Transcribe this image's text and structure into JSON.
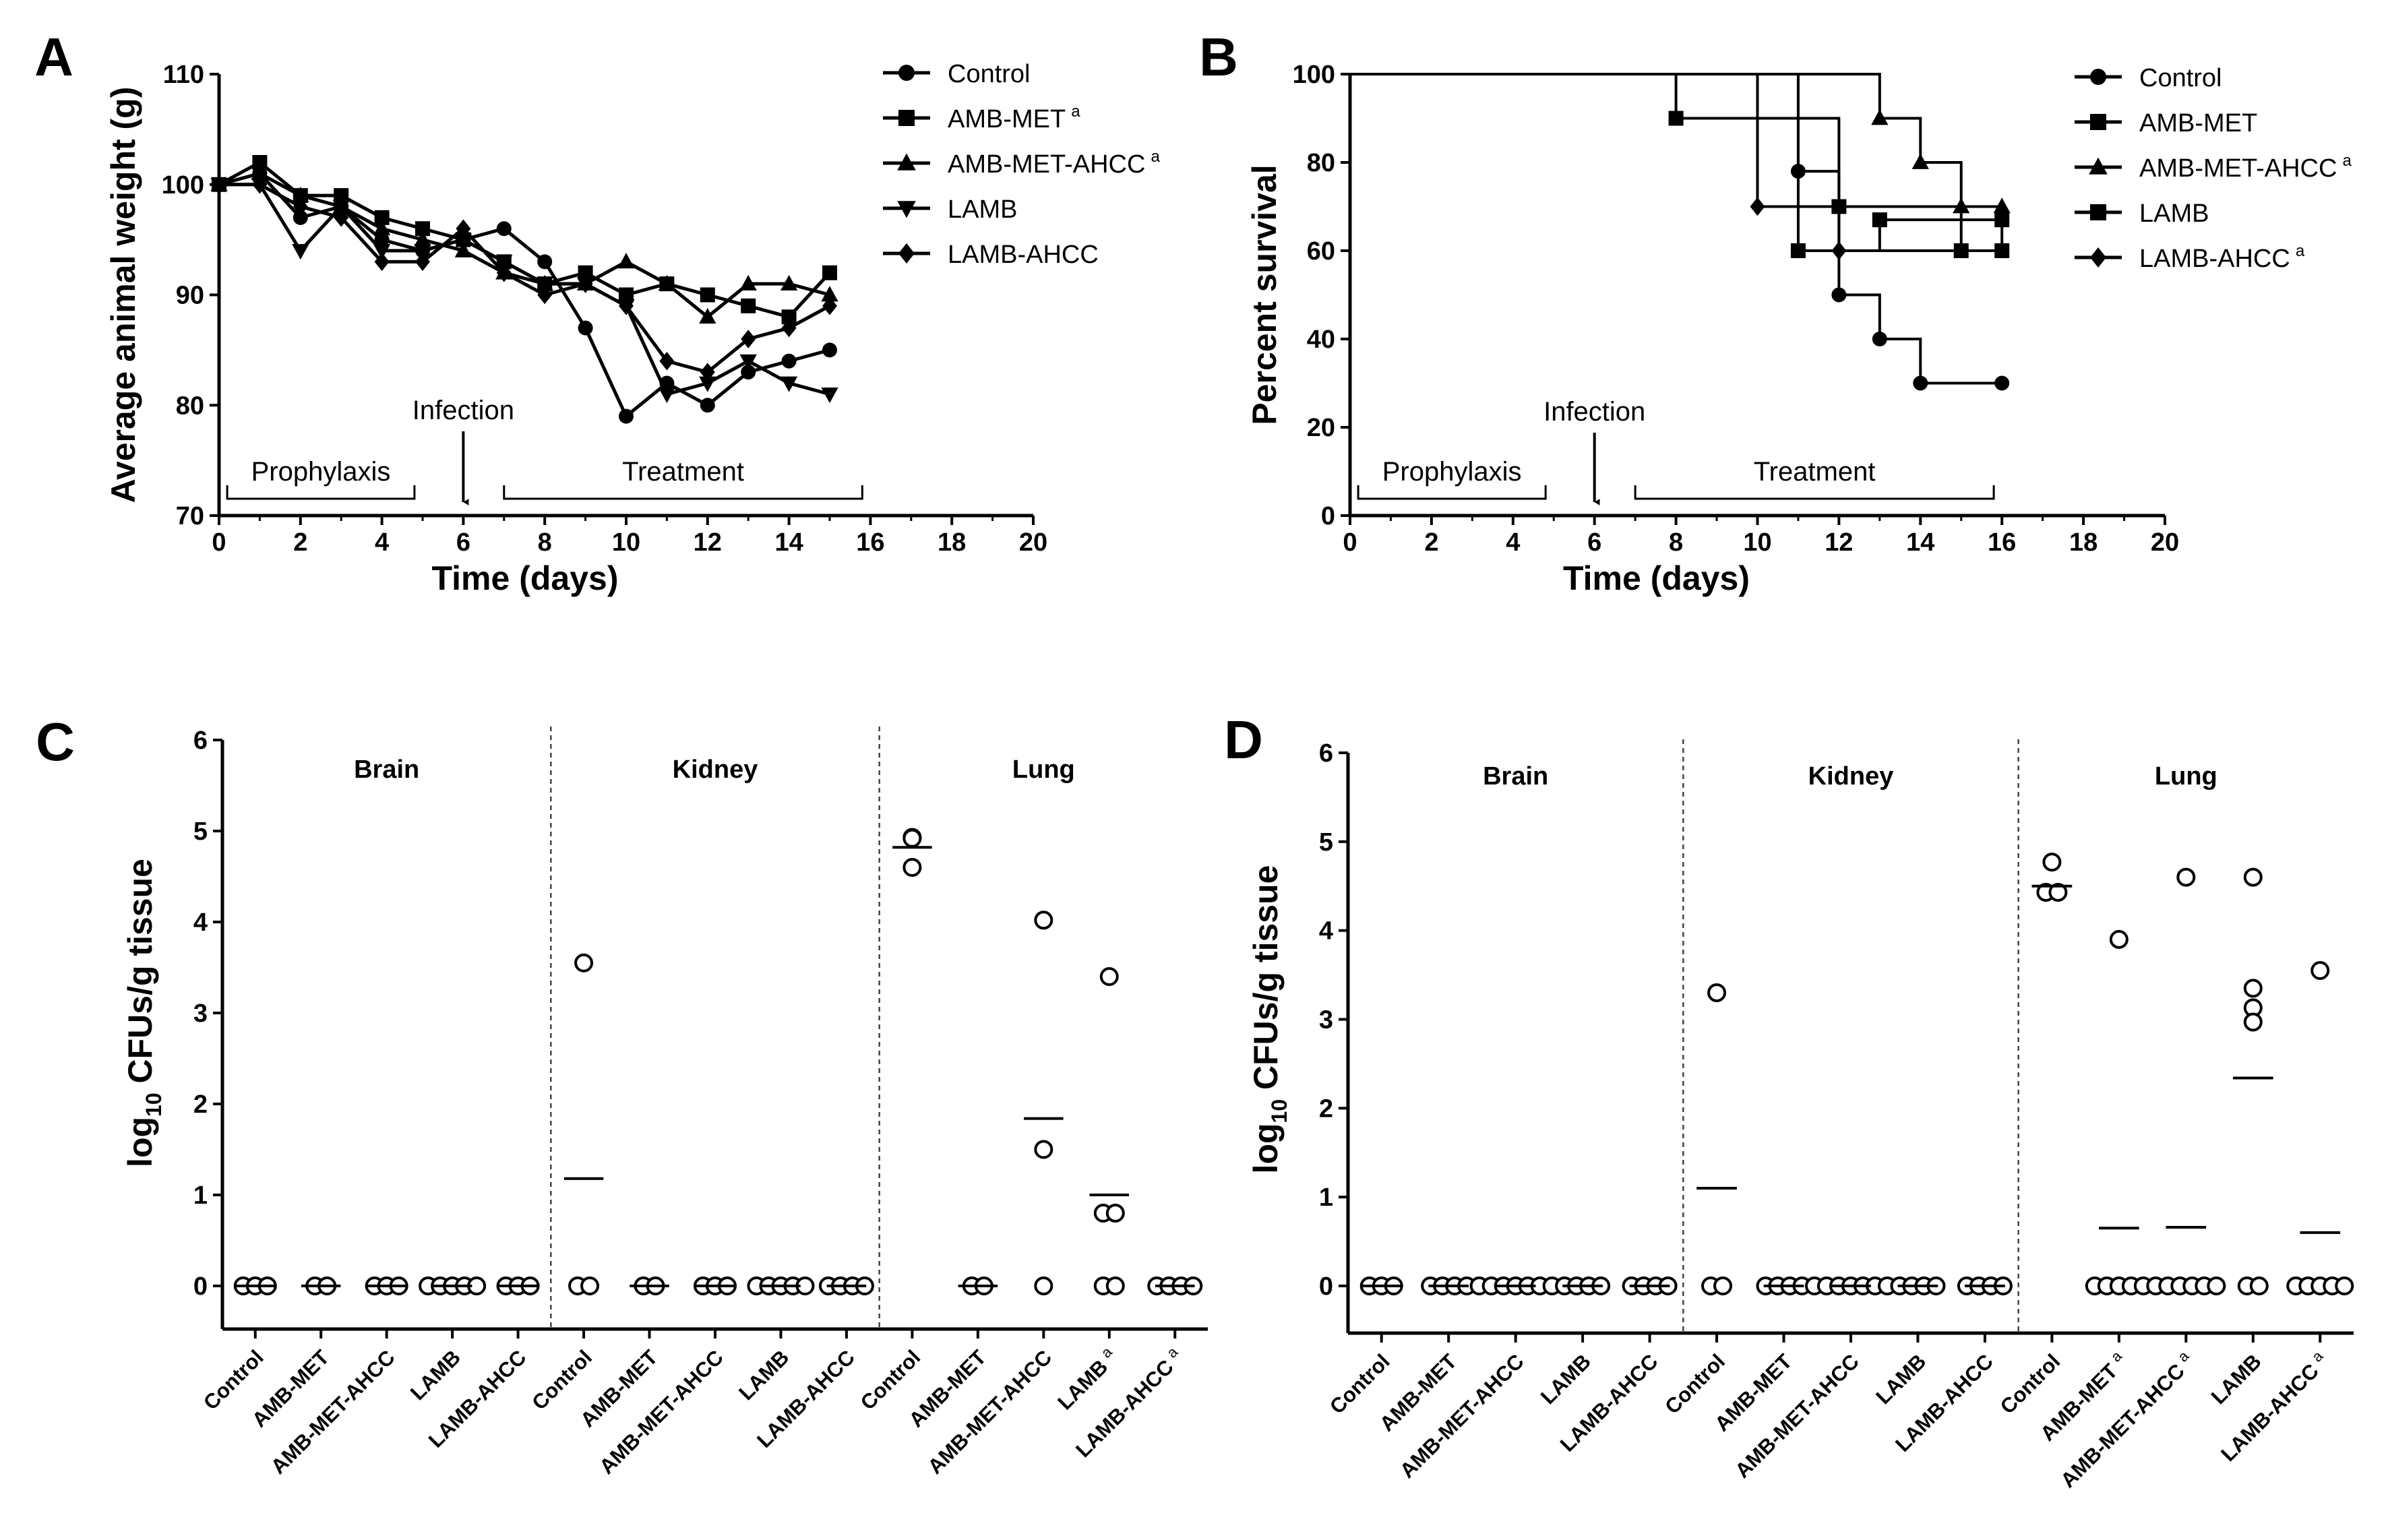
{
  "chart_data": [
    {
      "type": "line",
      "panel": "A",
      "title": "",
      "xlabel": "Time (days)",
      "ylabel": "Average animal weight (g)",
      "xlim": [
        0,
        20
      ],
      "ylim": [
        70,
        110
      ],
      "xticks": [
        "0",
        "2",
        "4",
        "6",
        "8",
        "10",
        "12",
        "14",
        "16",
        "18",
        "20"
      ],
      "yticks": [
        "70",
        "80",
        "90",
        "100",
        "110"
      ],
      "annotations": {
        "infection": "Infection",
        "prophylaxis": "Prophylaxis",
        "treatment": "Treatment"
      },
      "series": [
        {
          "name": "Control",
          "superscript": "",
          "marker": "circle",
          "x": [
            0,
            1,
            2,
            3,
            4,
            5,
            6,
            7,
            8,
            9,
            10,
            11,
            12,
            13,
            14,
            15
          ],
          "y": [
            100,
            101,
            97,
            98,
            95,
            94,
            95,
            96,
            93,
            87,
            79,
            82,
            80,
            83,
            84,
            85
          ]
        },
        {
          "name": "AMB-MET",
          "superscript": "a",
          "marker": "square",
          "x": [
            0,
            1,
            2,
            3,
            4,
            5,
            6,
            7,
            8,
            9,
            10,
            11,
            12,
            13,
            14,
            15
          ],
          "y": [
            100,
            102,
            99,
            99,
            97,
            96,
            95,
            93,
            91,
            92,
            90,
            91,
            90,
            89,
            88,
            92
          ]
        },
        {
          "name": "AMB-MET-AHCC",
          "superscript": "a",
          "marker": "triangle-up",
          "x": [
            0,
            1,
            2,
            3,
            4,
            5,
            6,
            7,
            8,
            9,
            10,
            11,
            12,
            13,
            14,
            15
          ],
          "y": [
            100,
            101,
            99,
            98,
            96,
            95,
            94,
            92,
            91,
            91,
            93,
            91,
            88,
            91,
            91,
            90
          ]
        },
        {
          "name": "LAMB",
          "superscript": "",
          "marker": "triangle-down",
          "x": [
            0,
            1,
            2,
            3,
            4,
            5,
            6,
            7,
            8,
            9,
            10,
            11,
            12,
            13,
            14,
            15
          ],
          "y": [
            100,
            100,
            94,
            98,
            94,
            94,
            95,
            93,
            91,
            91,
            89,
            81,
            82,
            84,
            82,
            81
          ]
        },
        {
          "name": "LAMB-AHCC",
          "superscript": "",
          "marker": "diamond",
          "x": [
            0,
            1,
            2,
            3,
            4,
            5,
            6,
            7,
            8,
            9,
            10,
            11,
            12,
            13,
            14,
            15
          ],
          "y": [
            100,
            100,
            98,
            97,
            93,
            93,
            96,
            92,
            90,
            91,
            89,
            84,
            83,
            86,
            87,
            89
          ]
        }
      ]
    },
    {
      "type": "line",
      "subtype": "survival-step",
      "panel": "B",
      "title": "",
      "xlabel": "Time (days)",
      "ylabel": "Percent survival",
      "xlim": [
        0,
        20
      ],
      "ylim": [
        0,
        100
      ],
      "xticks": [
        "0",
        "2",
        "4",
        "6",
        "8",
        "10",
        "12",
        "14",
        "16",
        "18",
        "20"
      ],
      "yticks": [
        "0",
        "20",
        "40",
        "60",
        "80",
        "100"
      ],
      "annotations": {
        "infection": "Infection",
        "prophylaxis": "Prophylaxis",
        "treatment": "Treatment"
      },
      "series": [
        {
          "name": "Control",
          "superscript": "",
          "marker": "circle",
          "x": [
            0,
            11,
            12,
            13,
            14,
            16
          ],
          "y": [
            100,
            78,
            50,
            40,
            30,
            30
          ]
        },
        {
          "name": "AMB-MET",
          "superscript": "",
          "marker": "square",
          "x": [
            0,
            8,
            12,
            15,
            16
          ],
          "y": [
            100,
            90,
            70,
            60,
            60
          ]
        },
        {
          "name": "AMB-MET-AHCC",
          "superscript": "a",
          "marker": "triangle-up",
          "x": [
            0,
            13,
            14,
            15,
            16
          ],
          "y": [
            100,
            90,
            80,
            70,
            70
          ]
        },
        {
          "name": "LAMB",
          "superscript": "",
          "marker": "square",
          "x": [
            0,
            11,
            13,
            16
          ],
          "y": [
            100,
            60,
            67,
            67
          ]
        },
        {
          "name": "LAMB-AHCC",
          "superscript": "a",
          "marker": "diamond",
          "x": [
            0,
            10,
            12,
            16
          ],
          "y": [
            100,
            70,
            60,
            67
          ]
        }
      ]
    },
    {
      "type": "scatter",
      "panel": "C",
      "title": "",
      "xlabel": "",
      "ylabel": "log10 CFUs/g tissue",
      "ylabel_parts": [
        "log",
        "10",
        " CFUs/g tissue"
      ],
      "ylim": [
        0,
        6
      ],
      "yticks": [
        "0",
        "1",
        "2",
        "3",
        "4",
        "5",
        "6"
      ],
      "tissues": [
        "Brain",
        "Kidney",
        "Lung"
      ],
      "groups": [
        {
          "tissue": "Brain",
          "label": "Control",
          "superscript": "",
          "points": [
            0,
            0,
            0
          ],
          "mean": 0
        },
        {
          "tissue": "Brain",
          "label": "AMB-MET",
          "superscript": "",
          "points": [
            0,
            0
          ],
          "mean": 0
        },
        {
          "tissue": "Brain",
          "label": "AMB-MET-AHCC",
          "superscript": "",
          "points": [
            0,
            0,
            0
          ],
          "mean": 0
        },
        {
          "tissue": "Brain",
          "label": "LAMB",
          "superscript": "",
          "points": [
            0,
            0,
            0,
            0,
            0
          ],
          "mean": 0
        },
        {
          "tissue": "Brain",
          "label": "LAMB-AHCC",
          "superscript": "",
          "points": [
            0,
            0,
            0
          ],
          "mean": 0
        },
        {
          "tissue": "Kidney",
          "label": "Control",
          "superscript": "",
          "points": [
            3.55,
            0,
            0
          ],
          "mean": 1.18
        },
        {
          "tissue": "Kidney",
          "label": "AMB-MET",
          "superscript": "",
          "points": [
            0,
            0
          ],
          "mean": 0
        },
        {
          "tissue": "Kidney",
          "label": "AMB-MET-AHCC",
          "superscript": "",
          "points": [
            0,
            0,
            0
          ],
          "mean": 0
        },
        {
          "tissue": "Kidney",
          "label": "LAMB",
          "superscript": "",
          "points": [
            0,
            0,
            0,
            0,
            0
          ],
          "mean": 0
        },
        {
          "tissue": "Kidney",
          "label": "LAMB-AHCC",
          "superscript": "",
          "points": [
            0,
            0,
            0,
            0
          ],
          "mean": 0
        },
        {
          "tissue": "Lung",
          "label": "Control",
          "superscript": "",
          "points": [
            4.93,
            4.92,
            4.6
          ],
          "mean": 4.82
        },
        {
          "tissue": "Lung",
          "label": "AMB-MET",
          "superscript": "",
          "points": [
            0,
            0
          ],
          "mean": 0
        },
        {
          "tissue": "Lung",
          "label": "AMB-MET-AHCC",
          "superscript": "",
          "points": [
            4.02,
            1.5,
            0
          ],
          "mean": 1.84
        },
        {
          "tissue": "Lung",
          "label": "LAMB",
          "superscript": "a",
          "points": [
            3.4,
            0.8,
            0.8,
            0,
            0
          ],
          "mean": 1.0
        },
        {
          "tissue": "Lung",
          "label": "LAMB-AHCC",
          "superscript": "a",
          "points": [
            0,
            0,
            0,
            0
          ],
          "mean": 0
        }
      ]
    },
    {
      "type": "scatter",
      "panel": "D",
      "title": "",
      "xlabel": "",
      "ylabel": "log10 CFUs/g tissue",
      "ylabel_parts": [
        "log",
        "10",
        " CFUs/g tissue"
      ],
      "ylim": [
        0,
        6
      ],
      "yticks": [
        "0",
        "1",
        "2",
        "3",
        "4",
        "5",
        "6"
      ],
      "tissues": [
        "Brain",
        "Kidney",
        "Lung"
      ],
      "groups": [
        {
          "tissue": "Brain",
          "label": "Control",
          "superscript": "",
          "points": [
            0,
            0,
            0
          ],
          "mean": 0
        },
        {
          "tissue": "Brain",
          "label": "AMB-MET",
          "superscript": "",
          "points": [
            0,
            0,
            0,
            0
          ],
          "mean": 0
        },
        {
          "tissue": "Brain",
          "label": "AMB-MET-AHCC",
          "superscript": "",
          "points": [
            0,
            0,
            0,
            0,
            0,
            0,
            0
          ],
          "mean": 0
        },
        {
          "tissue": "Brain",
          "label": "LAMB",
          "superscript": "",
          "points": [
            0,
            0,
            0,
            0
          ],
          "mean": 0
        },
        {
          "tissue": "Brain",
          "label": "LAMB-AHCC",
          "superscript": "",
          "points": [
            0,
            0,
            0,
            0
          ],
          "mean": 0
        },
        {
          "tissue": "Kidney",
          "label": "Control",
          "superscript": "",
          "points": [
            3.3,
            0,
            0
          ],
          "mean": 1.1
        },
        {
          "tissue": "Kidney",
          "label": "AMB-MET",
          "superscript": "",
          "points": [
            0,
            0,
            0,
            0
          ],
          "mean": 0
        },
        {
          "tissue": "Kidney",
          "label": "AMB-MET-AHCC",
          "superscript": "",
          "points": [
            0,
            0,
            0,
            0,
            0,
            0,
            0
          ],
          "mean": 0
        },
        {
          "tissue": "Kidney",
          "label": "LAMB",
          "superscript": "",
          "points": [
            0,
            0,
            0,
            0
          ],
          "mean": 0
        },
        {
          "tissue": "Kidney",
          "label": "LAMB-AHCC",
          "superscript": "",
          "points": [
            0,
            0,
            0,
            0
          ],
          "mean": 0
        },
        {
          "tissue": "Lung",
          "label": "Control",
          "superscript": "",
          "points": [
            4.77,
            4.43,
            4.43
          ],
          "mean": 4.5
        },
        {
          "tissue": "Lung",
          "label": "AMB-MET",
          "superscript": "a",
          "points": [
            3.9,
            0,
            0,
            0,
            0,
            0
          ],
          "mean": 0.65
        },
        {
          "tissue": "Lung",
          "label": "AMB-MET-AHCC",
          "superscript": "a",
          "points": [
            4.6,
            0,
            0,
            0,
            0,
            0,
            0
          ],
          "mean": 0.66
        },
        {
          "tissue": "Lung",
          "label": "LAMB",
          "superscript": "",
          "points": [
            4.6,
            3.35,
            3.13,
            2.97,
            0,
            0
          ],
          "mean": 2.34
        },
        {
          "tissue": "Lung",
          "label": "LAMB-AHCC",
          "superscript": "a",
          "points": [
            3.55,
            0,
            0,
            0,
            0,
            0
          ],
          "mean": 0.6
        }
      ]
    }
  ]
}
